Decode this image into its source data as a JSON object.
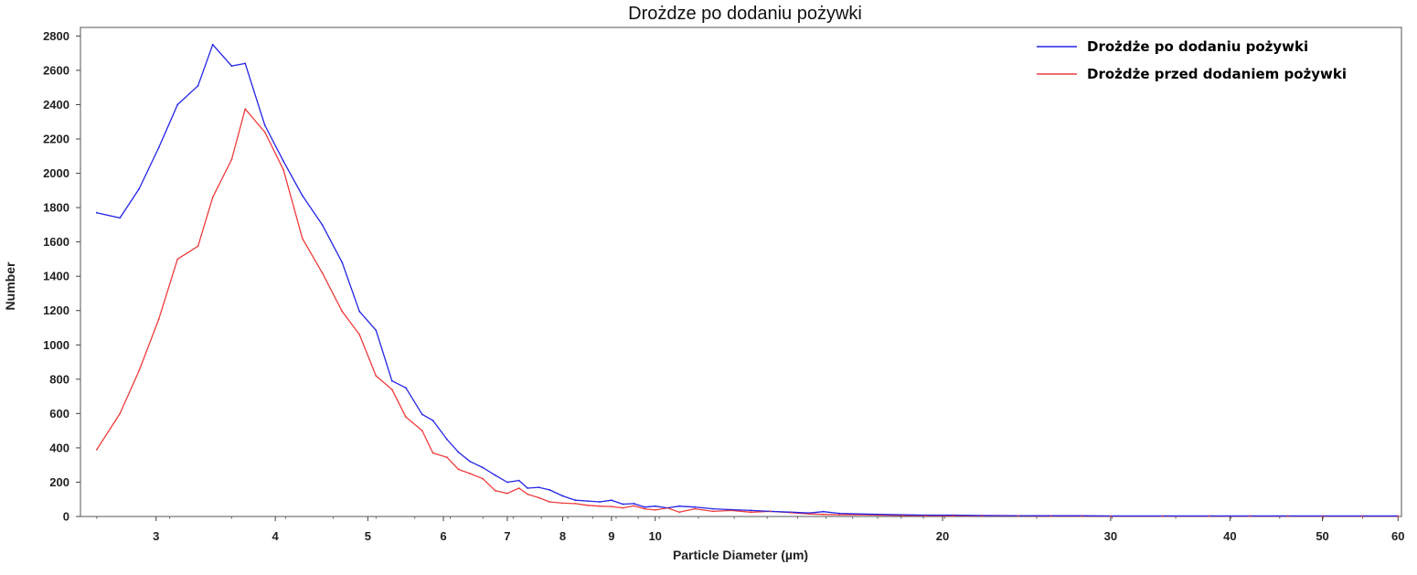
{
  "chart_data": {
    "type": "line",
    "title": "Drożdze po dodaniu pożywki",
    "xlabel": "Particle Diameter (µm)",
    "ylabel": "Number",
    "x_scale": "log",
    "xlim": [
      2.5,
      60.5
    ],
    "ylim": [
      0,
      2850
    ],
    "x_ticks": [
      3,
      4,
      5,
      6,
      7,
      8,
      9,
      10,
      20,
      30,
      40,
      50,
      60
    ],
    "x_tick_labels": [
      "3",
      "4",
      "5",
      "6",
      "7",
      "8",
      "9",
      "10",
      "20",
      "30",
      "40",
      "50",
      "60"
    ],
    "y_ticks": [
      0,
      200,
      400,
      600,
      800,
      1000,
      1200,
      1400,
      1600,
      1800,
      2000,
      2200,
      2400,
      2600,
      2800
    ],
    "y_tick_labels": [
      "0",
      "200",
      "400",
      "600",
      "800",
      "1000",
      "1200",
      "1400",
      "1600",
      "1800",
      "2000",
      "2200",
      "2400",
      "2600",
      "2800"
    ],
    "grid": false,
    "legend_position": "top-right",
    "series": [
      {
        "name": "Drożdże po dodaniu pożywki",
        "color": "#2323e6",
        "points": [
          [
            2.6,
            1770
          ],
          [
            2.75,
            1740
          ],
          [
            2.88,
            1910
          ],
          [
            3.02,
            2150
          ],
          [
            3.16,
            2400
          ],
          [
            3.32,
            2510
          ],
          [
            3.44,
            2750
          ],
          [
            3.6,
            2625
          ],
          [
            3.72,
            2640
          ],
          [
            3.9,
            2280
          ],
          [
            4.08,
            2070
          ],
          [
            4.27,
            1870
          ],
          [
            4.48,
            1700
          ],
          [
            4.7,
            1480
          ],
          [
            4.9,
            1195
          ],
          [
            5.1,
            1085
          ],
          [
            5.3,
            790
          ],
          [
            5.48,
            750
          ],
          [
            5.7,
            595
          ],
          [
            5.85,
            560
          ],
          [
            6.05,
            450
          ],
          [
            6.22,
            375
          ],
          [
            6.4,
            320
          ],
          [
            6.6,
            285
          ],
          [
            6.8,
            240
          ],
          [
            7.0,
            200
          ],
          [
            7.2,
            210
          ],
          [
            7.35,
            165
          ],
          [
            7.55,
            170
          ],
          [
            7.75,
            155
          ],
          [
            8.0,
            120
          ],
          [
            8.25,
            95
          ],
          [
            8.5,
            90
          ],
          [
            8.75,
            85
          ],
          [
            9.0,
            95
          ],
          [
            9.25,
            72
          ],
          [
            9.5,
            75
          ],
          [
            9.75,
            55
          ],
          [
            10.0,
            60
          ],
          [
            10.3,
            50
          ],
          [
            10.6,
            60
          ],
          [
            11.0,
            55
          ],
          [
            11.5,
            45
          ],
          [
            12.0,
            40
          ],
          [
            12.6,
            35
          ],
          [
            13.2,
            30
          ],
          [
            13.9,
            25
          ],
          [
            14.5,
            20
          ],
          [
            15.0,
            28
          ],
          [
            15.6,
            18
          ],
          [
            16.3,
            15
          ],
          [
            17.2,
            12
          ],
          [
            18.2,
            10
          ],
          [
            19.2,
            8
          ],
          [
            20.5,
            8
          ],
          [
            22.0,
            6
          ],
          [
            24.0,
            5
          ],
          [
            26.0,
            4
          ],
          [
            28.0,
            4
          ],
          [
            30.0,
            3
          ],
          [
            34.0,
            3
          ],
          [
            38.0,
            3
          ],
          [
            42.0,
            3
          ],
          [
            46.0,
            3
          ],
          [
            50.0,
            3
          ],
          [
            55.0,
            3
          ],
          [
            60.0,
            3
          ]
        ]
      },
      {
        "name": "Drożdże przed dodaniem pożywki",
        "color": "#ef3b3b",
        "points": [
          [
            2.6,
            390
          ],
          [
            2.75,
            600
          ],
          [
            2.88,
            850
          ],
          [
            3.02,
            1150
          ],
          [
            3.16,
            1500
          ],
          [
            3.32,
            1575
          ],
          [
            3.44,
            1860
          ],
          [
            3.6,
            2080
          ],
          [
            3.72,
            2375
          ],
          [
            3.9,
            2240
          ],
          [
            4.08,
            2020
          ],
          [
            4.27,
            1620
          ],
          [
            4.48,
            1420
          ],
          [
            4.7,
            1195
          ],
          [
            4.9,
            1060
          ],
          [
            5.1,
            820
          ],
          [
            5.3,
            740
          ],
          [
            5.48,
            580
          ],
          [
            5.7,
            500
          ],
          [
            5.85,
            370
          ],
          [
            6.05,
            345
          ],
          [
            6.22,
            275
          ],
          [
            6.4,
            250
          ],
          [
            6.6,
            220
          ],
          [
            6.8,
            150
          ],
          [
            7.0,
            135
          ],
          [
            7.2,
            165
          ],
          [
            7.35,
            130
          ],
          [
            7.55,
            110
          ],
          [
            7.75,
            85
          ],
          [
            8.0,
            78
          ],
          [
            8.25,
            75
          ],
          [
            8.5,
            65
          ],
          [
            8.75,
            60
          ],
          [
            9.0,
            58
          ],
          [
            9.25,
            50
          ],
          [
            9.5,
            62
          ],
          [
            9.75,
            45
          ],
          [
            10.0,
            38
          ],
          [
            10.3,
            50
          ],
          [
            10.6,
            25
          ],
          [
            11.0,
            45
          ],
          [
            11.5,
            30
          ],
          [
            12.0,
            35
          ],
          [
            12.6,
            25
          ],
          [
            13.2,
            30
          ],
          [
            13.9,
            22
          ],
          [
            14.5,
            15
          ],
          [
            15.0,
            12
          ],
          [
            15.6,
            10
          ],
          [
            16.3,
            10
          ],
          [
            17.2,
            8
          ],
          [
            18.2,
            6
          ],
          [
            19.2,
            5
          ],
          [
            20.5,
            4
          ],
          [
            22.0,
            4
          ],
          [
            24.0,
            3
          ],
          [
            26.0,
            2
          ],
          [
            28.0,
            2
          ],
          [
            30.0,
            2
          ],
          [
            34.0,
            2
          ],
          [
            38.0,
            2
          ],
          [
            42.0,
            2
          ],
          [
            46.0,
            2
          ],
          [
            50.0,
            2
          ],
          [
            55.0,
            2
          ],
          [
            60.0,
            2
          ]
        ]
      }
    ]
  }
}
